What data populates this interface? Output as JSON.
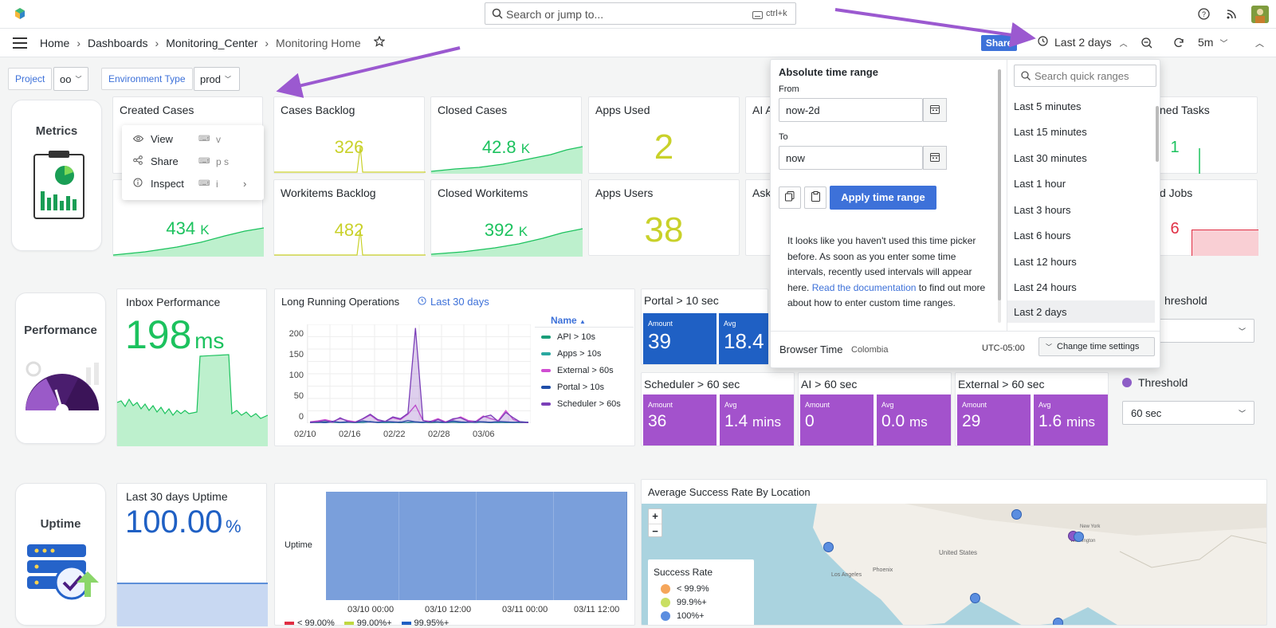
{
  "search": {
    "placeholder": "Search or jump to...",
    "shortcut": "ctrl+k"
  },
  "breadcrumb": {
    "home": "Home",
    "dashboards": "Dashboards",
    "folder": "Monitoring_Center",
    "page": "Monitoring Home"
  },
  "toolbar": {
    "share": "Share",
    "time_range": "Last 2 days",
    "refresh_interval": "5m"
  },
  "variables": {
    "project_label": "Project",
    "project_value": "oo",
    "env_label": "Environment Type",
    "env_value": "prod"
  },
  "sections": {
    "metrics": "Metrics",
    "performance": "Performance",
    "uptime": "Uptime"
  },
  "context_menu": {
    "items": [
      {
        "label": "View",
        "key": "v"
      },
      {
        "label": "Share",
        "key": "p s"
      },
      {
        "label": "Inspect",
        "key": "i"
      }
    ]
  },
  "metric_panels": [
    {
      "title": "Created Cases",
      "value": ""
    },
    {
      "title": "Cases Backlog",
      "value": "326"
    },
    {
      "title": "Closed Cases",
      "value": "42.8",
      "unit": "K"
    },
    {
      "title": "Apps Used",
      "value": "2"
    },
    {
      "title": "AI A",
      "value": ""
    },
    {
      "title": "ned Tasks",
      "value": "1"
    },
    {
      "title": "",
      "value": "434",
      "unit": "K"
    },
    {
      "title": "Workitems Backlog",
      "value": "482"
    },
    {
      "title": "Closed Workitems",
      "value": "392",
      "unit": "K"
    },
    {
      "title": "Apps Users",
      "value": "38"
    },
    {
      "title": "Ask",
      "value": ""
    },
    {
      "title": "d Jobs",
      "value": "6"
    }
  ],
  "inbox": {
    "title": "Inbox Performance",
    "value": "198",
    "unit": "ms"
  },
  "long_running": {
    "title": "Long Running Operations",
    "range": "Last 30 days",
    "legend_header": "Name",
    "legend": [
      {
        "name": "API > 10s",
        "color": "#1a9e79"
      },
      {
        "name": "Apps > 10s",
        "color": "#29a8a0"
      },
      {
        "name": "External > 60s",
        "color": "#d04ed2"
      },
      {
        "name": "Portal > 10s",
        "color": "#1f4ea8"
      },
      {
        "name": "Scheduler > 60s",
        "color": "#7b3fb8"
      }
    ],
    "y_ticks": [
      "200",
      "150",
      "100",
      "50",
      "0"
    ],
    "x_ticks": [
      "02/10",
      "02/16",
      "02/22",
      "02/28",
      "03/06"
    ]
  },
  "portal": {
    "title": "Portal > 10 sec",
    "amount_label": "Amount",
    "amount": "39",
    "avg_label": "Avg",
    "avg": "18.4"
  },
  "scheduler": {
    "title": "Scheduler > 60 sec",
    "amount_label": "Amount",
    "amount": "36",
    "avg_label": "Avg",
    "avg": "1.4",
    "avg_unit": "mins"
  },
  "ai": {
    "title": "AI > 60 sec",
    "amount_label": "Amount",
    "amount": "0",
    "avg_label": "Avg",
    "avg": "0.0",
    "avg_unit": "ms"
  },
  "external": {
    "title": "External > 60 sec",
    "amount_label": "Amount",
    "amount": "29",
    "avg_label": "Avg",
    "avg": "1.6",
    "avg_unit": "mins"
  },
  "threshold": {
    "top_label": "hreshold",
    "label": "Threshold",
    "value": "60 sec"
  },
  "uptime_panel": {
    "title": "Last 30 days Uptime",
    "value": "100.00",
    "unit": "%"
  },
  "uptime_chart": {
    "ylabel": "Uptime",
    "x_ticks": [
      "03/10 00:00",
      "03/10 12:00",
      "03/11 00:00",
      "03/11 12:00"
    ],
    "legend": [
      {
        "name": "< 99.00%",
        "color": "#e02f44"
      },
      {
        "name": "99.00%+",
        "color": "#c0d841"
      },
      {
        "name": "99.95%+",
        "color": "#1f60c4"
      }
    ]
  },
  "map_panel": {
    "title": "Average Success Rate By Location",
    "legend_title": "Success Rate",
    "legend": [
      {
        "name": "< 99.9%",
        "color": "#f5a65b"
      },
      {
        "name": "99.9%+",
        "color": "#c9df62"
      },
      {
        "name": "100%+",
        "color": "#5b8ee0"
      }
    ],
    "labels": [
      "United States",
      "Los Angeles",
      "Phoenix",
      "New York",
      "Washington"
    ]
  },
  "time_picker": {
    "heading": "Absolute time range",
    "from_label": "From",
    "from_value": "now-2d",
    "to_label": "To",
    "to_value": "now",
    "apply": "Apply time range",
    "info": "It looks like you haven't used this time picker before. As soon as you enter some time intervals, recently used intervals will appear here.",
    "doc_link": "Read the documentation",
    "doc_rest": " to find out more about how to enter custom time ranges.",
    "browser_time": "Browser Time",
    "location": "Colombia",
    "utc": "UTC-05:00",
    "change_settings": "Change time settings",
    "search_placeholder": "Search quick ranges",
    "quick_ranges": [
      "Last 5 minutes",
      "Last 15 minutes",
      "Last 30 minutes",
      "Last 1 hour",
      "Last 3 hours",
      "Last 6 hours",
      "Last 12 hours",
      "Last 24 hours",
      "Last 2 days"
    ]
  },
  "colors": {
    "accent": "#3d71d9",
    "green": "#1cc25e",
    "yellow": "#c9d12a",
    "purple": "#a352cc",
    "arrow": "#9b59d0"
  }
}
